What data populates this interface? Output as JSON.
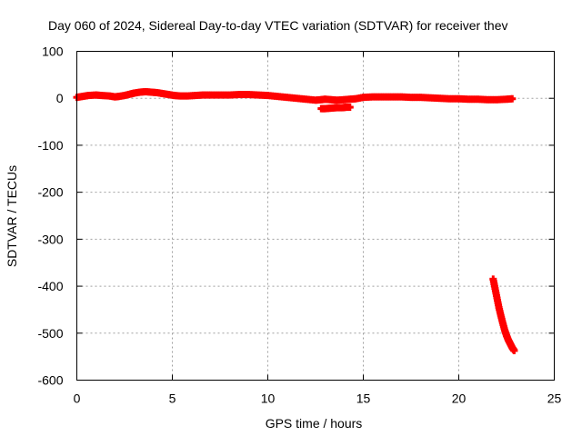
{
  "chart_data": {
    "type": "scatter",
    "title": "Day 060 of 2024, Sidereal Day-to-day VTEC variation (SDTVAR) for receiver thev",
    "xlabel": "GPS time / hours",
    "ylabel": "SDTVAR / TECUs",
    "xlim": [
      0,
      25
    ],
    "ylim": [
      -600,
      100
    ],
    "xticks": [
      0,
      5,
      10,
      15,
      20,
      25
    ],
    "yticks": [
      100,
      0,
      -100,
      -200,
      -300,
      -400,
      -500,
      -600
    ],
    "xtick_labels": [
      "0",
      "5",
      "10",
      "15",
      "20",
      "25"
    ],
    "ytick_labels": [
      "100",
      "0",
      "-100",
      "-200",
      "-300",
      "-400",
      "-500",
      "-600"
    ],
    "grid": true,
    "legend": "none",
    "series_color": "#ff0000",
    "series": [
      {
        "x": [
          0.0,
          0.3,
          0.6,
          1.0,
          1.3,
          1.7,
          2.0,
          2.2,
          2.5,
          2.8,
          3.0,
          3.3,
          3.6,
          3.9,
          4.2,
          4.5,
          4.8,
          5.1,
          5.4,
          5.8,
          6.2,
          6.6,
          7.0,
          7.5,
          8.0,
          8.5,
          9.0,
          9.5,
          10.0,
          10.5,
          11.0,
          11.5,
          12.0,
          12.5,
          12.8,
          13.0,
          13.3,
          13.6,
          14.0,
          14.3,
          14.6,
          15.0,
          15.5,
          16.0,
          16.5,
          17.0,
          17.5,
          18.0,
          18.5,
          19.0,
          19.5,
          20.0,
          20.5,
          21.0,
          21.5,
          22.0,
          22.5,
          22.8
        ],
        "y": [
          2,
          4,
          6,
          7,
          6,
          5,
          3,
          4,
          6,
          9,
          11,
          13,
          14,
          13,
          12,
          10,
          8,
          6,
          5,
          5,
          6,
          7,
          7,
          7,
          7,
          8,
          8,
          7,
          6,
          4,
          2,
          0,
          -2,
          -4,
          -3,
          -2,
          -3,
          -4,
          -3,
          -2,
          -1,
          2,
          3,
          3,
          3,
          3,
          2,
          2,
          1,
          0,
          -1,
          -1,
          -2,
          -2,
          -3,
          -3,
          -2,
          -1
        ]
      },
      {
        "x": [
          12.8,
          13.0,
          13.3,
          13.6,
          13.9,
          14.1,
          14.3
        ],
        "y": [
          -22,
          -22,
          -21,
          -20,
          -20,
          -19,
          -19
        ]
      },
      {
        "x": [
          21.8,
          21.9,
          22.0,
          22.1,
          22.2,
          22.3,
          22.4,
          22.5,
          22.6,
          22.7,
          22.8,
          22.9
        ],
        "y": [
          -385,
          -405,
          -425,
          -445,
          -462,
          -478,
          -493,
          -505,
          -515,
          -523,
          -531,
          -537
        ]
      }
    ]
  }
}
